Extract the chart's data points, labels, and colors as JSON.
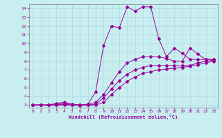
{
  "xlabel": "Windchill (Refroidissement éolien,°C)",
  "bg_color": "#c8eef0",
  "grid_color": "#b0d8dc",
  "line_color": "#990099",
  "xlim": [
    -0.5,
    23.5
  ],
  "ylim": [
    2.7,
    14.5
  ],
  "xticks": [
    0,
    1,
    2,
    3,
    4,
    5,
    6,
    7,
    8,
    9,
    10,
    11,
    12,
    13,
    14,
    15,
    16,
    17,
    18,
    19,
    20,
    21,
    22,
    23
  ],
  "yticks": [
    3,
    4,
    5,
    6,
    7,
    8,
    9,
    10,
    11,
    12,
    13,
    14
  ],
  "line1_x": [
    0,
    1,
    2,
    3,
    4,
    5,
    6,
    7,
    8,
    9,
    10,
    11,
    12,
    13,
    14,
    15,
    16,
    17,
    18,
    19,
    20,
    21,
    22,
    23
  ],
  "line1_y": [
    3.0,
    3.0,
    3.0,
    3.2,
    3.3,
    3.1,
    2.9,
    3.1,
    4.5,
    9.8,
    12.0,
    11.8,
    14.2,
    13.7,
    14.2,
    14.2,
    10.6,
    8.5,
    9.5,
    8.9,
    8.2,
    8.2,
    8.2,
    8.2
  ],
  "line2_x": [
    0,
    1,
    2,
    3,
    4,
    5,
    6,
    7,
    8,
    9,
    10,
    11,
    12,
    13,
    14,
    15,
    16,
    17,
    18,
    19,
    20,
    21,
    22,
    23
  ],
  "line2_y": [
    3.0,
    3.0,
    3.0,
    3.1,
    3.2,
    3.1,
    3.0,
    3.1,
    3.3,
    4.2,
    5.5,
    6.8,
    7.8,
    8.2,
    8.5,
    8.5,
    8.5,
    8.3,
    8.0,
    8.0,
    9.5,
    8.8,
    8.2,
    8.2
  ],
  "line3_x": [
    0,
    1,
    2,
    3,
    4,
    5,
    6,
    7,
    8,
    9,
    10,
    11,
    12,
    13,
    14,
    15,
    16,
    17,
    18,
    19,
    20,
    21,
    22,
    23
  ],
  "line3_y": [
    3.0,
    3.0,
    3.0,
    3.0,
    3.1,
    3.0,
    3.0,
    3.0,
    3.1,
    3.8,
    4.8,
    5.8,
    6.5,
    7.0,
    7.3,
    7.5,
    7.5,
    7.5,
    7.5,
    7.5,
    7.5,
    7.8,
    8.0,
    8.1
  ],
  "line4_x": [
    0,
    1,
    2,
    3,
    4,
    5,
    6,
    7,
    8,
    9,
    10,
    11,
    12,
    13,
    14,
    15,
    16,
    17,
    18,
    19,
    20,
    21,
    22,
    23
  ],
  "line4_y": [
    3.0,
    3.0,
    3.0,
    3.0,
    3.0,
    3.0,
    3.0,
    3.0,
    3.0,
    3.3,
    4.2,
    5.0,
    5.7,
    6.2,
    6.6,
    6.8,
    7.0,
    7.1,
    7.2,
    7.3,
    7.4,
    7.6,
    7.8,
    8.0
  ]
}
